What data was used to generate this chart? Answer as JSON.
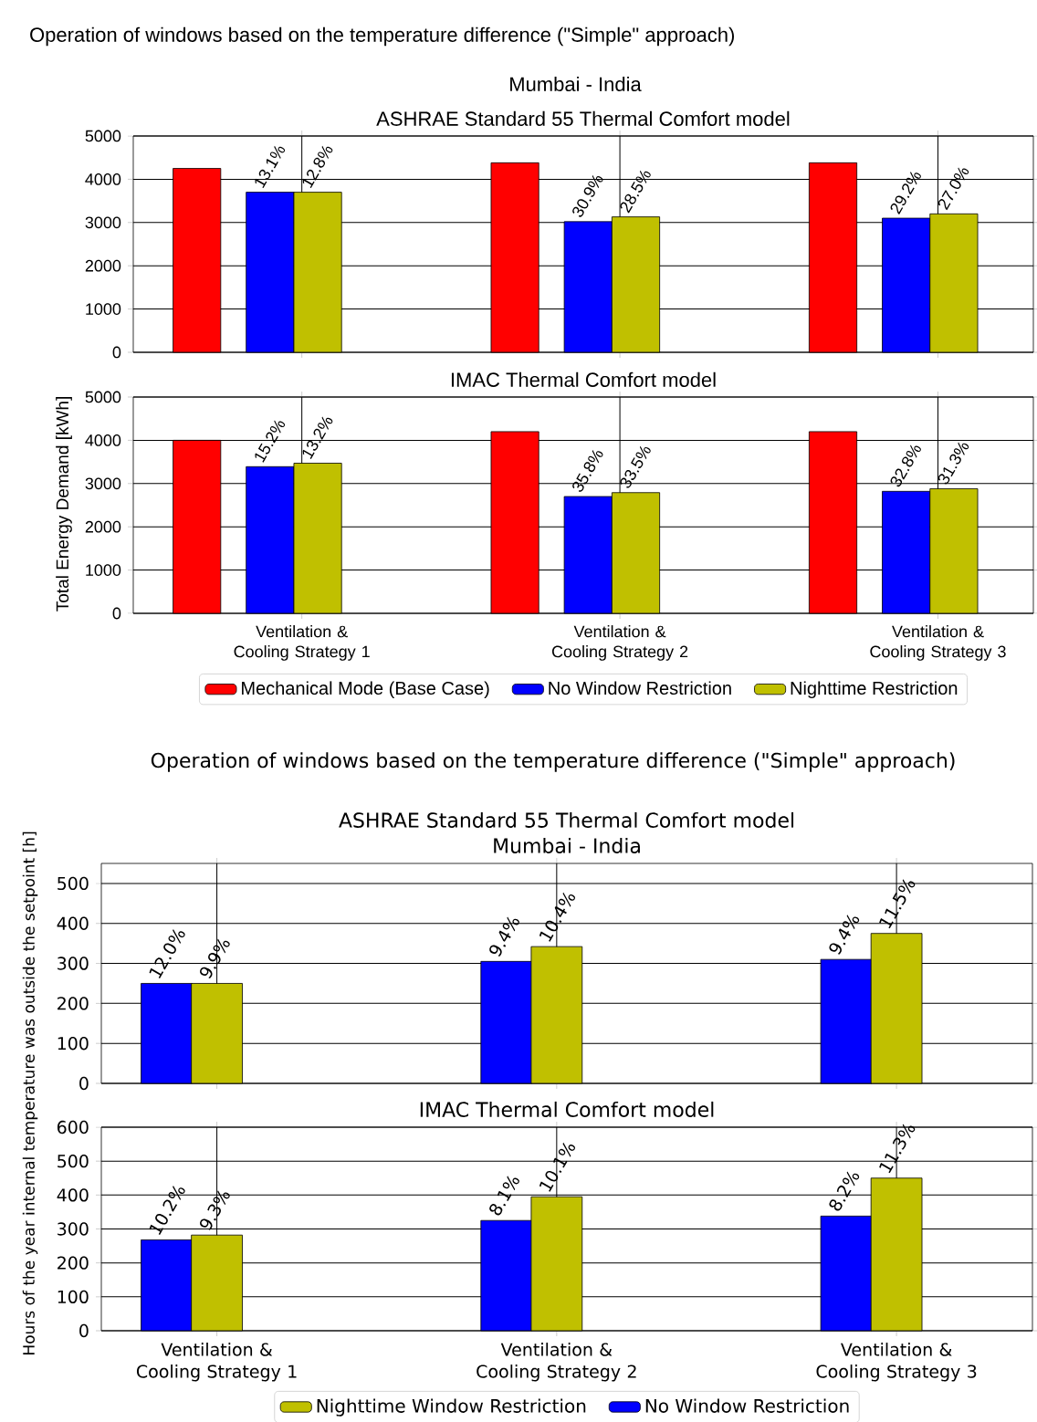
{
  "chart_data": [
    {
      "type": "bar",
      "title": "ASHRAE Standard 55 Thermal Comfort model",
      "ylabel": "Total Energy Demand [kWh]",
      "categories": [
        "Ventilation & Cooling Strategy 1",
        "Ventilation & Cooling Strategy 2",
        "Ventilation & Cooling Strategy 3"
      ],
      "tick_labels": "y",
      "ylim": [
        0,
        5000
      ],
      "yticks": [
        0,
        1000,
        2000,
        3000,
        4000,
        5000
      ],
      "grid": true,
      "series": [
        {
          "color": "#ff0000",
          "values": [
            4250,
            4380,
            4380
          ]
        },
        {
          "color": "#0000ff",
          "values": [
            3700,
            3020,
            3100
          ]
        },
        {
          "color": "#c0c000",
          "values": [
            3700,
            3130,
            3200
          ]
        }
      ],
      "annotations": [
        "Operation of windows based on the temperature difference (\"Simple\" approach)",
        "Mumbai - India",
        {
          "text": "13.1%",
          "x": "Ventilation & Cooling Strategy 1",
          "y": 3700
        },
        {
          "text": "12.8%",
          "x": "Ventilation & Cooling Strategy 1",
          "y": 3700
        },
        {
          "text": "30.9%",
          "x": "Ventilation & Cooling Strategy 2",
          "y": 3020
        },
        {
          "text": "28.5%",
          "x": "Ventilation & Cooling Strategy 2",
          "y": 3130
        },
        {
          "text": "29.2%",
          "x": "Ventilation & Cooling Strategy 3",
          "y": 3100
        },
        {
          "text": "27.0%",
          "x": "Ventilation & Cooling Strategy 3",
          "y": 3200
        }
      ]
    },
    {
      "type": "bar",
      "title": "IMAC Thermal Comfort model",
      "categories": [
        "Ventilation & Cooling Strategy 1",
        "Ventilation & Cooling Strategy 2",
        "Ventilation & Cooling Strategy 3"
      ],
      "ylim": [
        0,
        5000
      ],
      "yticks": [
        0,
        1000,
        2000,
        3000,
        4000,
        5000
      ],
      "grid": true,
      "legend": "bottom",
      "series": [
        {
          "name": "Mechanical Mode (Base Case)",
          "color": "#ff0000",
          "values": [
            4000,
            4200,
            4200
          ]
        },
        {
          "name": "No Window Restriction",
          "color": "#0000ff",
          "values": [
            3390,
            2700,
            2820
          ]
        },
        {
          "name": "Nighttime Restriction",
          "color": "#c0c000",
          "values": [
            3470,
            2790,
            2880
          ]
        }
      ],
      "annotations": [
        {
          "text": "15.2%",
          "x": "Ventilation & Cooling Strategy 1",
          "y": 3390
        },
        {
          "text": "13.2%",
          "x": "Ventilation & Cooling Strategy 1",
          "y": 3470
        },
        {
          "text": "35.8%",
          "x": "Ventilation & Cooling Strategy 2",
          "y": 2700
        },
        {
          "text": "33.5%",
          "x": "Ventilation & Cooling Strategy 2",
          "y": 2790
        },
        {
          "text": "32.8%",
          "x": "Ventilation & Cooling Strategy 3",
          "y": 2820
        },
        {
          "text": "31.3%",
          "x": "Ventilation & Cooling Strategy 3",
          "y": 2880
        }
      ]
    },
    {
      "type": "bar",
      "title": "ASHRAE Standard 55 Thermal Comfort model",
      "subtitle": "Mumbai - India",
      "ylabel": "Hours of the year internal temperature was outside the setpoint [h]",
      "categories": [
        "Ventilation & Cooling Strategy 1",
        "Ventilation & Cooling Strategy 2",
        "Ventilation & Cooling Strategy 3"
      ],
      "tick_labels": "y",
      "ylim": [
        0,
        550
      ],
      "yticks": [
        0,
        100,
        200,
        300,
        400,
        500
      ],
      "grid": true,
      "series": [
        {
          "color": "#0000ff",
          "values": [
            250,
            305,
            310
          ]
        },
        {
          "color": "#c0c000",
          "values": [
            250,
            342,
            375
          ]
        }
      ],
      "annotations": [
        "Operation of windows based on the temperature difference (\"Simple\" approach)",
        {
          "text": "12.0%",
          "x": "Ventilation & Cooling Strategy 1",
          "y": 250
        },
        {
          "text": "9.9%",
          "x": "Ventilation & Cooling Strategy 1",
          "y": 250
        },
        "9.4%",
        {
          "text": "10.4%",
          "x": "Ventilation & Cooling Strategy 2",
          "y": 342
        },
        "9.4%",
        {
          "text": "11.5%",
          "x": "Ventilation & Cooling Strategy 3",
          "y": 375
        }
      ]
    },
    {
      "type": "bar",
      "title": "IMAC Thermal Comfort model",
      "categories": [
        "Ventilation & Cooling Strategy 1",
        "Ventilation & Cooling Strategy 2",
        "Ventilation & Cooling Strategy 3"
      ],
      "ylim": [
        0,
        600
      ],
      "yticks": [
        0,
        100,
        200,
        300,
        400,
        500,
        600
      ],
      "grid": true,
      "legend": "bottom",
      "series": [
        {
          "name": "No Window Restriction",
          "color": "#0000ff",
          "values": [
            268,
            325,
            338
          ]
        },
        {
          "name": "Nighttime Window Restriction",
          "color": "#c0c000",
          "values": [
            282,
            395,
            450
          ]
        }
      ],
      "annotations": [
        {
          "text": "10.2%",
          "x": "Ventilation & Cooling Strategy 1",
          "y": 268
        },
        {
          "text": "9.3%",
          "x": "Ventilation & Cooling Strategy 1",
          "y": 282
        },
        "8.1%",
        {
          "text": "10.1%",
          "x": "Ventilation & Cooling Strategy 2",
          "y": 395
        },
        "8.2%",
        {
          "text": "11.3%",
          "x": "Ventilation & Cooling Strategy 3",
          "y": 450
        }
      ]
    }
  ]
}
